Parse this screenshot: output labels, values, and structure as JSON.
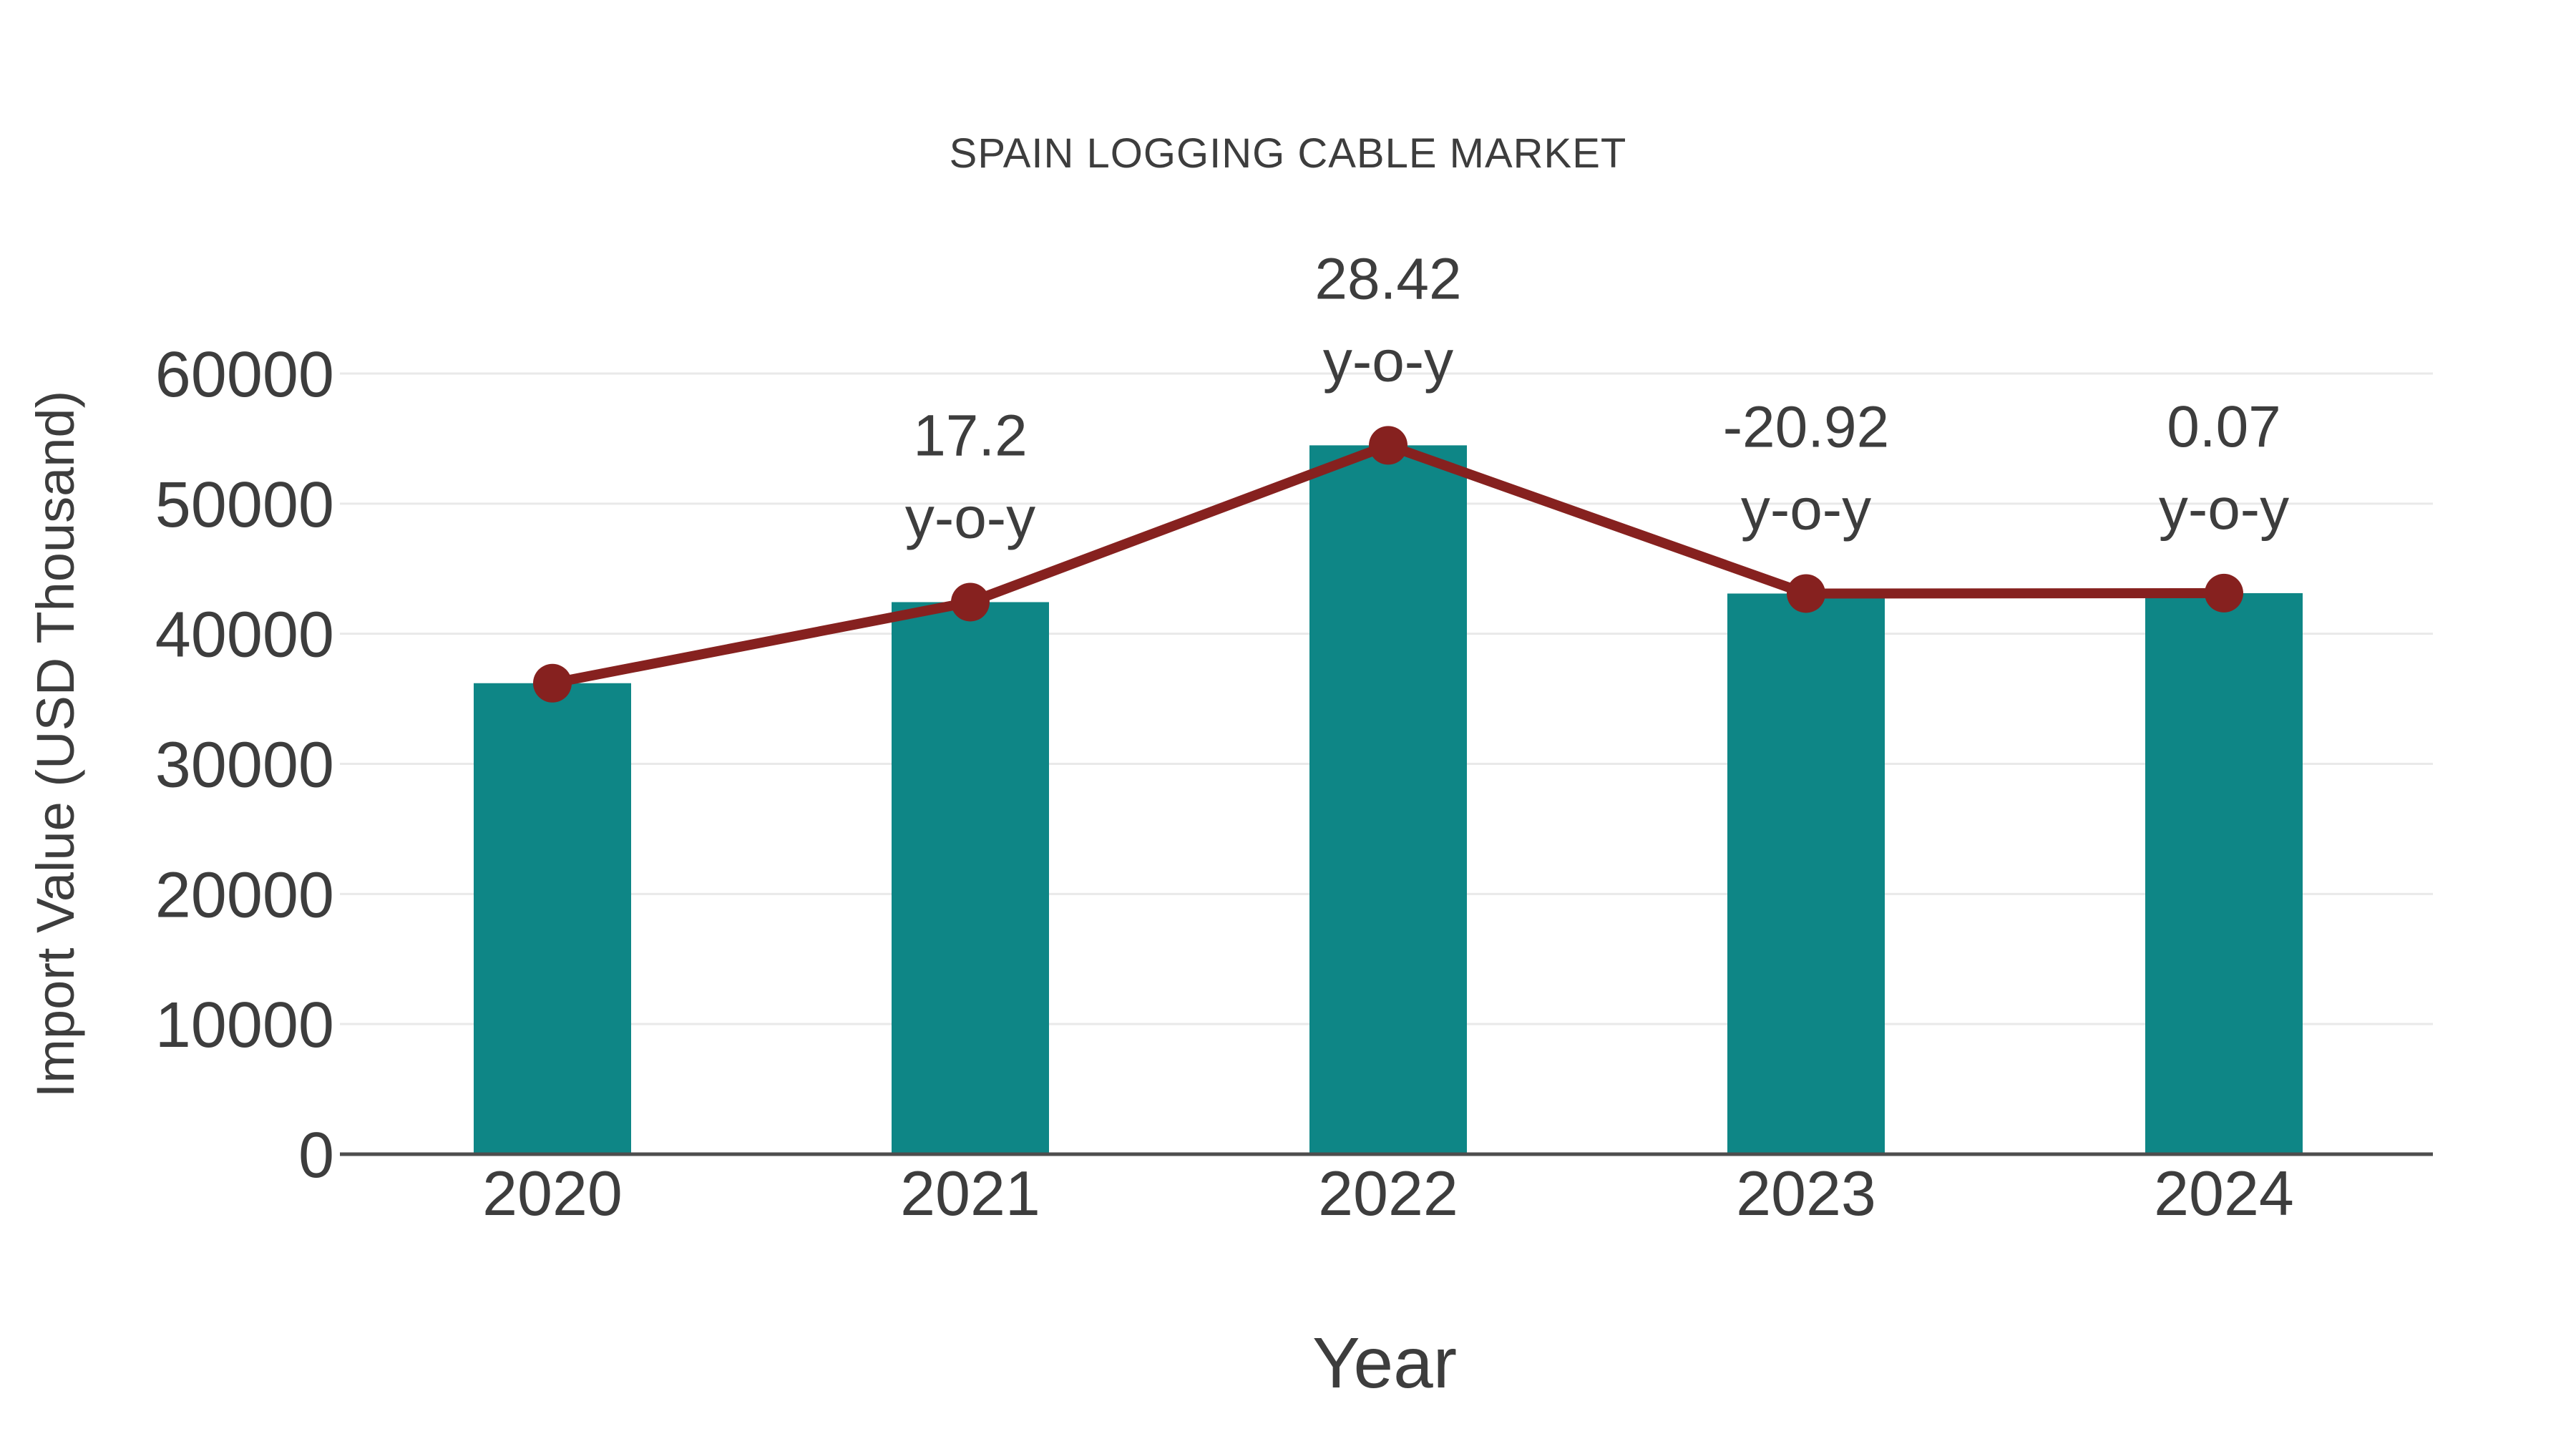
{
  "chart_data": {
    "type": "bar",
    "title": "SPAIN LOGGING CABLE MARKET",
    "xlabel": "Year",
    "ylabel": "Import Value (USD Thousand)",
    "categories": [
      "2020",
      "2021",
      "2022",
      "2023",
      "2024"
    ],
    "series": [
      {
        "name": "Import Value (USD Thousand)",
        "type": "bar",
        "values": [
          36200,
          42430,
          54480,
          43090,
          43120
        ]
      },
      {
        "name": "y-o-y growth (%)",
        "type": "line",
        "values": [
          null,
          17.2,
          28.42,
          -20.92,
          0.07
        ],
        "annotation_suffix": "y-o-y"
      }
    ],
    "ylim": [
      0,
      60000
    ],
    "ytick_interval": 10000,
    "ytick_labels": [
      "0",
      "10000",
      "20000",
      "30000",
      "40000",
      "50000",
      "60000"
    ],
    "grid": true,
    "legend_position": "none",
    "colors": {
      "bar": "#0e8686",
      "line": "#86211f",
      "marker": "#86211f",
      "grid": "#e9e9e9",
      "axis": "#4d4d4d",
      "text": "#3d3d3d"
    }
  }
}
